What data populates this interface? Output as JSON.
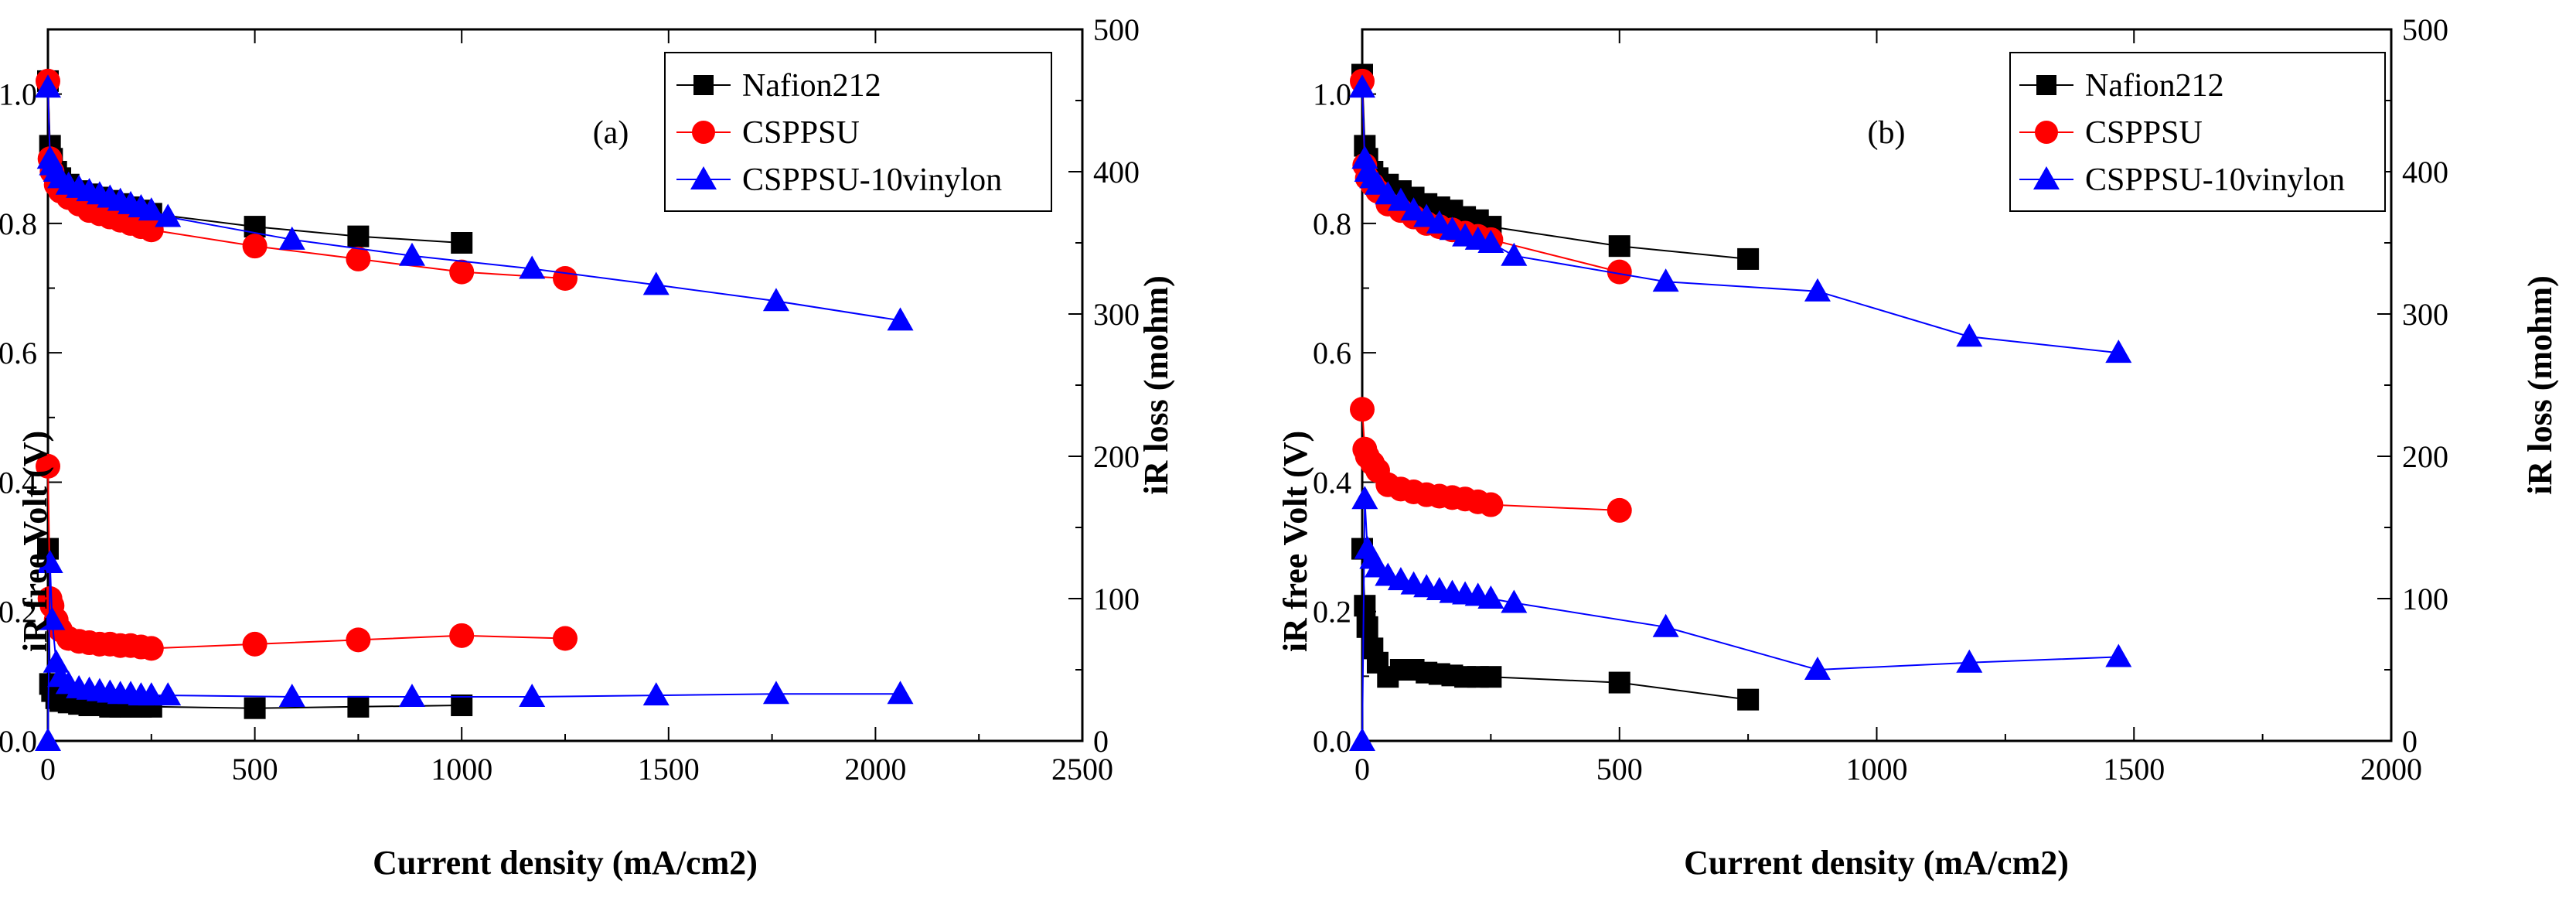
{
  "chart_data": [
    {
      "type": "scatter",
      "panel_label": "(a)",
      "xlabel": "Current density (mA/cm2)",
      "ylabel": "iR free Volt (V)",
      "y2label": "iR loss (mohm)",
      "xlim": [
        0,
        2500
      ],
      "ylim": [
        0,
        1.1
      ],
      "y2lim": [
        0,
        500
      ],
      "xticks": [
        0,
        500,
        1000,
        1500,
        2000,
        2500
      ],
      "yticks": [
        0.0,
        0.2,
        0.4,
        0.6,
        0.8,
        1.0
      ],
      "y2ticks": [
        0,
        100,
        200,
        300,
        400,
        500
      ],
      "legend": [
        "Nafion212",
        "CSPPSU",
        "CSPPSU-10vinylon"
      ],
      "legend_position": "top-right",
      "series": [
        {
          "name": "Nafion212",
          "quantity": "iR free Volt",
          "axis": "left",
          "marker": "square",
          "color": "#000000",
          "x": [
            0,
            5,
            10,
            20,
            30,
            50,
            75,
            100,
            125,
            150,
            175,
            200,
            225,
            250,
            500,
            750,
            1000
          ],
          "y": [
            1.02,
            0.92,
            0.9,
            0.88,
            0.87,
            0.86,
            0.85,
            0.845,
            0.84,
            0.835,
            0.83,
            0.825,
            0.82,
            0.815,
            0.795,
            0.78,
            0.77
          ]
        },
        {
          "name": "CSPPSU",
          "quantity": "iR free Volt",
          "axis": "left",
          "marker": "circle",
          "color": "#ff0000",
          "x": [
            0,
            5,
            10,
            20,
            30,
            50,
            75,
            100,
            125,
            150,
            175,
            200,
            225,
            250,
            500,
            750,
            1000,
            1250
          ],
          "y": [
            1.02,
            0.9,
            0.88,
            0.86,
            0.85,
            0.84,
            0.83,
            0.82,
            0.815,
            0.81,
            0.805,
            0.8,
            0.795,
            0.79,
            0.765,
            0.745,
            0.725,
            0.715
          ]
        },
        {
          "name": "CSPPSU-10vinylon",
          "quantity": "iR free Volt",
          "axis": "left",
          "marker": "triangle",
          "color": "#0000ff",
          "x": [
            0,
            5,
            10,
            20,
            30,
            50,
            75,
            100,
            125,
            150,
            175,
            200,
            225,
            250,
            290,
            590,
            880,
            1170,
            1470,
            1760,
            2060
          ],
          "y": [
            1.01,
            0.9,
            0.89,
            0.88,
            0.87,
            0.86,
            0.855,
            0.85,
            0.845,
            0.84,
            0.835,
            0.83,
            0.825,
            0.82,
            0.81,
            0.775,
            0.75,
            0.73,
            0.705,
            0.68,
            0.65
          ]
        },
        {
          "name": "Nafion212",
          "quantity": "iR loss",
          "axis": "right",
          "marker": "square",
          "color": "#000000",
          "x": [
            0,
            5,
            10,
            20,
            30,
            50,
            75,
            100,
            125,
            150,
            175,
            200,
            225,
            250,
            500,
            750,
            1000
          ],
          "y": [
            135,
            40,
            35,
            30,
            28,
            27,
            26,
            25,
            25,
            24,
            24,
            24,
            24,
            24,
            23,
            24,
            25
          ]
        },
        {
          "name": "CSPPSU",
          "quantity": "iR loss",
          "axis": "right",
          "marker": "circle",
          "color": "#ff0000",
          "x": [
            0,
            5,
            10,
            20,
            30,
            50,
            75,
            100,
            125,
            150,
            175,
            200,
            225,
            250,
            500,
            750,
            1000,
            1250
          ],
          "y": [
            193,
            100,
            95,
            85,
            78,
            72,
            70,
            69,
            68,
            68,
            67,
            67,
            66,
            65,
            68,
            71,
            74,
            72
          ]
        },
        {
          "name": "CSPPSU-10vinylon",
          "quantity": "iR loss",
          "axis": "right",
          "marker": "triangle",
          "color": "#0000ff",
          "x": [
            0,
            5,
            10,
            20,
            30,
            50,
            75,
            100,
            125,
            150,
            175,
            200,
            225,
            250,
            290,
            590,
            880,
            1170,
            1470,
            1760,
            2060
          ],
          "y": [
            0,
            125,
            85,
            55,
            45,
            40,
            37,
            36,
            35,
            34,
            33,
            33,
            32,
            32,
            32,
            31,
            31,
            31,
            32,
            33,
            33
          ]
        }
      ]
    },
    {
      "type": "scatter",
      "panel_label": "(b)",
      "xlabel": "Current density (mA/cm2)",
      "ylabel": "iR free Volt (V)",
      "y2label": "iR loss (mohm)",
      "xlim": [
        0,
        2000
      ],
      "ylim": [
        0,
        1.1
      ],
      "y2lim": [
        0,
        500
      ],
      "xticks": [
        0,
        500,
        1000,
        1500,
        2000
      ],
      "yticks": [
        0.0,
        0.2,
        0.4,
        0.6,
        0.8,
        1.0
      ],
      "y2ticks": [
        0,
        100,
        200,
        300,
        400,
        500
      ],
      "legend": [
        "Nafion212",
        "CSPPSU",
        "CSPPSU-10vinylon"
      ],
      "legend_position": "top-right",
      "series": [
        {
          "name": "Nafion212",
          "quantity": "iR free Volt",
          "axis": "left",
          "marker": "square",
          "color": "#000000",
          "x": [
            0,
            5,
            10,
            20,
            30,
            50,
            75,
            100,
            125,
            150,
            175,
            200,
            225,
            250,
            500,
            750
          ],
          "y": [
            1.03,
            0.92,
            0.9,
            0.88,
            0.87,
            0.86,
            0.85,
            0.84,
            0.83,
            0.825,
            0.82,
            0.81,
            0.805,
            0.795,
            0.765,
            0.745
          ]
        },
        {
          "name": "CSPPSU",
          "quantity": "iR free Volt",
          "axis": "left",
          "marker": "circle",
          "color": "#ff0000",
          "x": [
            0,
            5,
            10,
            20,
            30,
            50,
            75,
            100,
            125,
            150,
            175,
            200,
            225,
            250,
            500
          ],
          "y": [
            1.02,
            0.89,
            0.87,
            0.86,
            0.85,
            0.83,
            0.82,
            0.81,
            0.8,
            0.795,
            0.79,
            0.785,
            0.78,
            0.775,
            0.725
          ]
        },
        {
          "name": "CSPPSU-10vinylon",
          "quantity": "iR free Volt",
          "axis": "left",
          "marker": "triangle",
          "color": "#0000ff",
          "x": [
            0,
            5,
            10,
            20,
            30,
            50,
            75,
            100,
            125,
            150,
            175,
            200,
            225,
            250,
            295,
            590,
            885,
            1180,
            1470
          ],
          "y": [
            1.01,
            0.9,
            0.88,
            0.87,
            0.86,
            0.845,
            0.835,
            0.82,
            0.81,
            0.8,
            0.79,
            0.78,
            0.775,
            0.77,
            0.75,
            0.71,
            0.695,
            0.625,
            0.6
          ]
        },
        {
          "name": "Nafion212",
          "quantity": "iR loss",
          "axis": "right",
          "marker": "square",
          "color": "#000000",
          "x": [
            0,
            5,
            10,
            20,
            30,
            50,
            75,
            100,
            125,
            150,
            175,
            200,
            225,
            250,
            500,
            750
          ],
          "y": [
            135,
            95,
            80,
            65,
            55,
            45,
            50,
            50,
            48,
            47,
            46,
            45,
            45,
            45,
            41,
            29
          ]
        },
        {
          "name": "CSPPSU",
          "quantity": "iR loss",
          "axis": "right",
          "marker": "circle",
          "color": "#ff0000",
          "x": [
            0,
            5,
            10,
            20,
            30,
            50,
            75,
            100,
            125,
            150,
            175,
            200,
            225,
            250,
            500
          ],
          "y": [
            233,
            205,
            200,
            195,
            190,
            180,
            177,
            175,
            173,
            172,
            171,
            170,
            168,
            166,
            162
          ]
        },
        {
          "name": "CSPPSU-10vinylon",
          "quantity": "iR loss",
          "axis": "right",
          "marker": "triangle",
          "color": "#0000ff",
          "x": [
            0,
            5,
            10,
            20,
            30,
            50,
            75,
            100,
            125,
            150,
            175,
            200,
            225,
            250,
            295,
            590,
            885,
            1180,
            1470
          ],
          "y": [
            0,
            170,
            135,
            128,
            122,
            116,
            113,
            110,
            108,
            106,
            104,
            103,
            102,
            100,
            97,
            80,
            50,
            55,
            59
          ]
        }
      ]
    }
  ]
}
